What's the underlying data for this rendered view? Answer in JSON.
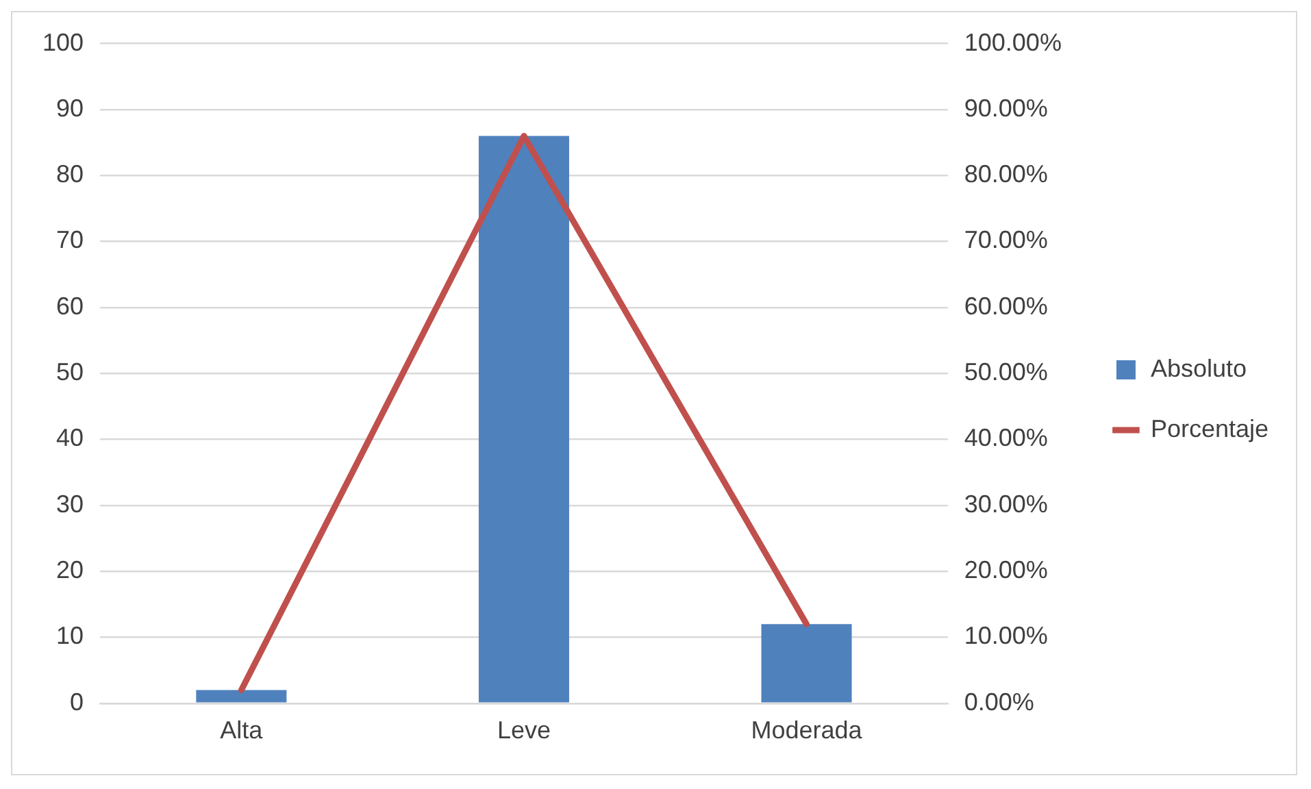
{
  "chart_data": {
    "type": "bar",
    "categories": [
      "Alta",
      "Leve",
      "Moderada"
    ],
    "series": [
      {
        "name": "Absoluto",
        "color": "#4f81bd",
        "values": [
          2,
          86,
          12
        ]
      },
      {
        "name": "Porcentaje",
        "type": "line",
        "axis": "y2",
        "color": "#c0504d",
        "values": [
          0.02,
          0.86,
          0.12
        ]
      }
    ],
    "ylim": [
      0,
      100
    ],
    "yticks": [
      0,
      10,
      20,
      30,
      40,
      50,
      60,
      70,
      80,
      90,
      100
    ],
    "y2lim": [
      0,
      1
    ],
    "y2ticks": [
      {
        "value": 0,
        "label": "0.00%"
      },
      {
        "value": 0.1,
        "label": "10.00%"
      },
      {
        "value": 0.2,
        "label": "20.00%"
      },
      {
        "value": 0.3,
        "label": "30.00%"
      },
      {
        "value": 0.4,
        "label": "40.00%"
      },
      {
        "value": 0.5,
        "label": "50.00%"
      },
      {
        "value": 0.6,
        "label": "60.00%"
      },
      {
        "value": 0.7,
        "label": "70.00%"
      },
      {
        "value": 0.8,
        "label": "80.00%"
      },
      {
        "value": 0.9,
        "label": "90.00%"
      },
      {
        "value": 1,
        "label": "100.00%"
      }
    ],
    "grid": "y",
    "legend": "right",
    "marker": "none",
    "line_style": "solid"
  }
}
